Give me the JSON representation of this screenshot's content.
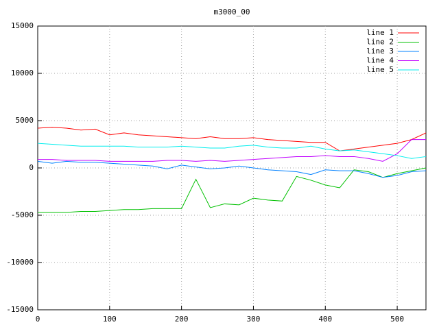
{
  "chart_data": {
    "type": "line",
    "title": "m3000_00",
    "x": [
      0,
      20,
      40,
      60,
      80,
      100,
      120,
      140,
      160,
      180,
      200,
      220,
      240,
      260,
      280,
      300,
      320,
      340,
      360,
      380,
      400,
      420,
      440,
      460,
      480,
      500,
      520,
      540
    ],
    "series": [
      {
        "name": "line 1",
        "color": "#ff0000",
        "values": [
          4200,
          4300,
          4200,
          4000,
          4100,
          3500,
          3700,
          3500,
          3400,
          3300,
          3200,
          3100,
          3300,
          3100,
          3100,
          3200,
          3000,
          2900,
          2800,
          2700,
          2700,
          1800,
          2000,
          2200,
          2400,
          2600,
          3000,
          3700
        ]
      },
      {
        "name": "line 2",
        "color": "#00c000",
        "values": [
          -4700,
          -4700,
          -4700,
          -4600,
          -4600,
          -4500,
          -4400,
          -4400,
          -4300,
          -4300,
          -4300,
          -1200,
          -4200,
          -3800,
          -3900,
          -3200,
          -3400,
          -3500,
          -900,
          -1300,
          -1800,
          -2100,
          -200,
          -400,
          -1000,
          -600,
          -300,
          0
        ]
      },
      {
        "name": "line 3",
        "color": "#0080ff",
        "values": [
          700,
          500,
          700,
          600,
          600,
          500,
          400,
          300,
          200,
          -100,
          300,
          100,
          -100,
          0,
          200,
          0,
          -200,
          -300,
          -400,
          -700,
          -200,
          -300,
          -300,
          -600,
          -1000,
          -800,
          -400,
          -300
        ]
      },
      {
        "name": "line 4",
        "color": "#c000ff",
        "values": [
          900,
          900,
          800,
          800,
          800,
          700,
          700,
          700,
          700,
          800,
          800,
          700,
          800,
          700,
          800,
          900,
          1000,
          1100,
          1200,
          1200,
          1300,
          1200,
          1200,
          1000,
          700,
          1500,
          3000,
          3000
        ]
      },
      {
        "name": "line 5",
        "color": "#00eeee",
        "values": [
          2600,
          2500,
          2400,
          2300,
          2300,
          2300,
          2300,
          2200,
          2200,
          2200,
          2300,
          2200,
          2100,
          2100,
          2300,
          2400,
          2200,
          2100,
          2100,
          2300,
          2000,
          1800,
          1900,
          1700,
          1500,
          1300,
          1000,
          1200
        ]
      }
    ],
    "xlim": [
      0,
      540
    ],
    "xticks": [
      0,
      100,
      200,
      300,
      400,
      500
    ],
    "ylim": [
      -15000,
      15000
    ],
    "yticks": [
      -15000,
      -10000,
      -5000,
      0,
      5000,
      10000,
      15000
    ],
    "grid": true,
    "legend": "top-right"
  }
}
